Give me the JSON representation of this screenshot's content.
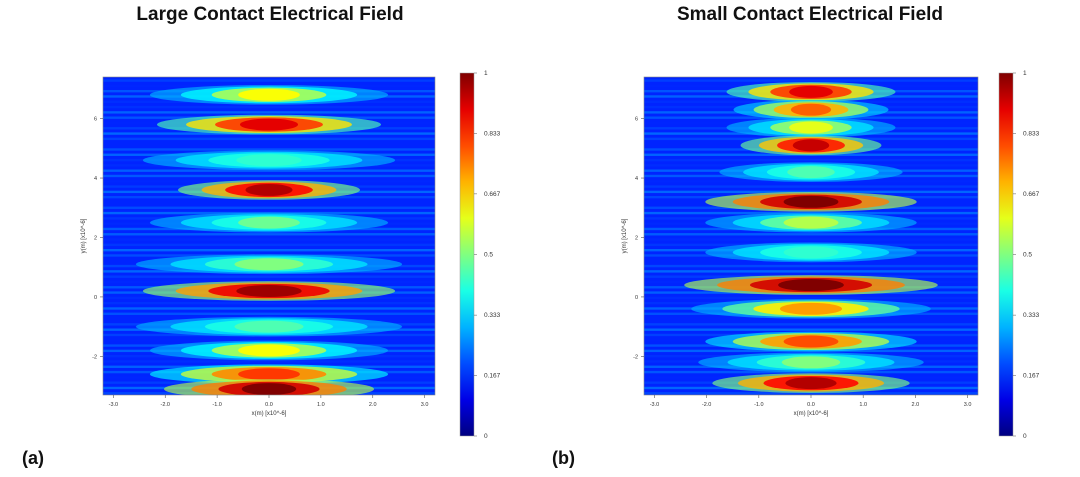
{
  "chart_data": [
    {
      "type": "heatmap",
      "panel_label": "(a)",
      "title": "Large Contact Electrical Field",
      "xlabel": "x(m) [x10^-6]",
      "ylabel": "y(m) [x10^-6]",
      "xlim": [
        -3.2,
        3.2
      ],
      "ylim": [
        -3.3,
        7.4
      ],
      "x_ticks": [
        "-3.0",
        "-2.0",
        "-1.0",
        "0.0",
        "1.0",
        "2.0",
        "3.0"
      ],
      "x_tick_values": [
        -3,
        -2,
        -1,
        0,
        1,
        2,
        3
      ],
      "y_ticks": [
        "-2",
        "0",
        "2",
        "4",
        "6"
      ],
      "y_tick_values": [
        -2,
        0,
        2,
        4,
        6
      ],
      "colorbar": {
        "ticks": [
          "0",
          "0.167",
          "0.333",
          "0.5",
          "0.667",
          "0.833",
          "1"
        ],
        "tick_values": [
          0,
          0.167,
          0.333,
          0.5,
          0.667,
          0.833,
          1
        ],
        "colormap": "jet"
      },
      "field_bands": [
        {
          "y": 6.8,
          "intensity": 0.62,
          "half_width": 1.7
        },
        {
          "y": 5.8,
          "intensity": 0.9,
          "half_width": 1.6
        },
        {
          "y": 4.6,
          "intensity": 0.42,
          "half_width": 1.8
        },
        {
          "y": 3.6,
          "intensity": 0.95,
          "half_width": 1.3
        },
        {
          "y": 2.5,
          "intensity": 0.48,
          "half_width": 1.7
        },
        {
          "y": 1.1,
          "intensity": 0.5,
          "half_width": 1.9
        },
        {
          "y": 0.2,
          "intensity": 0.97,
          "half_width": 1.8
        },
        {
          "y": -1.0,
          "intensity": 0.45,
          "half_width": 1.9
        },
        {
          "y": -1.8,
          "intensity": 0.62,
          "half_width": 1.7
        },
        {
          "y": -2.6,
          "intensity": 0.82,
          "half_width": 1.7
        },
        {
          "y": -3.1,
          "intensity": 1.0,
          "half_width": 1.5
        }
      ]
    },
    {
      "type": "heatmap",
      "panel_label": "(b)",
      "title": "Small Contact Electrical Field",
      "xlabel": "x(m) [x10^-6]",
      "ylabel": "y(m) [x10^-6]",
      "xlim": [
        -3.2,
        3.2
      ],
      "ylim": [
        -3.3,
        7.4
      ],
      "x_ticks": [
        "-3.0",
        "-2.0",
        "-1.0",
        "0.0",
        "1.0",
        "2.0",
        "3.0"
      ],
      "x_tick_values": [
        -3,
        -2,
        -1,
        0,
        1,
        2,
        3
      ],
      "y_ticks": [
        "-2",
        "0",
        "2",
        "4",
        "6"
      ],
      "y_tick_values": [
        -2,
        0,
        2,
        4,
        6
      ],
      "colorbar": {
        "ticks": [
          "0",
          "0.167",
          "0.333",
          "0.5",
          "0.667",
          "0.833",
          "1"
        ],
        "tick_values": [
          0,
          0.167,
          0.333,
          0.5,
          0.667,
          0.833,
          1
        ],
        "colormap": "jet"
      },
      "field_bands": [
        {
          "y": 6.9,
          "intensity": 0.9,
          "half_width": 1.2
        },
        {
          "y": 6.3,
          "intensity": 0.78,
          "half_width": 1.1
        },
        {
          "y": 5.7,
          "intensity": 0.6,
          "half_width": 1.2
        },
        {
          "y": 5.1,
          "intensity": 0.93,
          "half_width": 1.0
        },
        {
          "y": 4.2,
          "intensity": 0.45,
          "half_width": 1.3
        },
        {
          "y": 3.2,
          "intensity": 1.0,
          "half_width": 1.5
        },
        {
          "y": 2.5,
          "intensity": 0.55,
          "half_width": 1.5
        },
        {
          "y": 1.5,
          "intensity": 0.42,
          "half_width": 1.5
        },
        {
          "y": 0.4,
          "intensity": 1.0,
          "half_width": 1.8
        },
        {
          "y": -0.4,
          "intensity": 0.72,
          "half_width": 1.7
        },
        {
          "y": -1.5,
          "intensity": 0.8,
          "half_width": 1.5
        },
        {
          "y": -2.2,
          "intensity": 0.5,
          "half_width": 1.6
        },
        {
          "y": -2.9,
          "intensity": 0.95,
          "half_width": 1.4
        }
      ]
    }
  ]
}
